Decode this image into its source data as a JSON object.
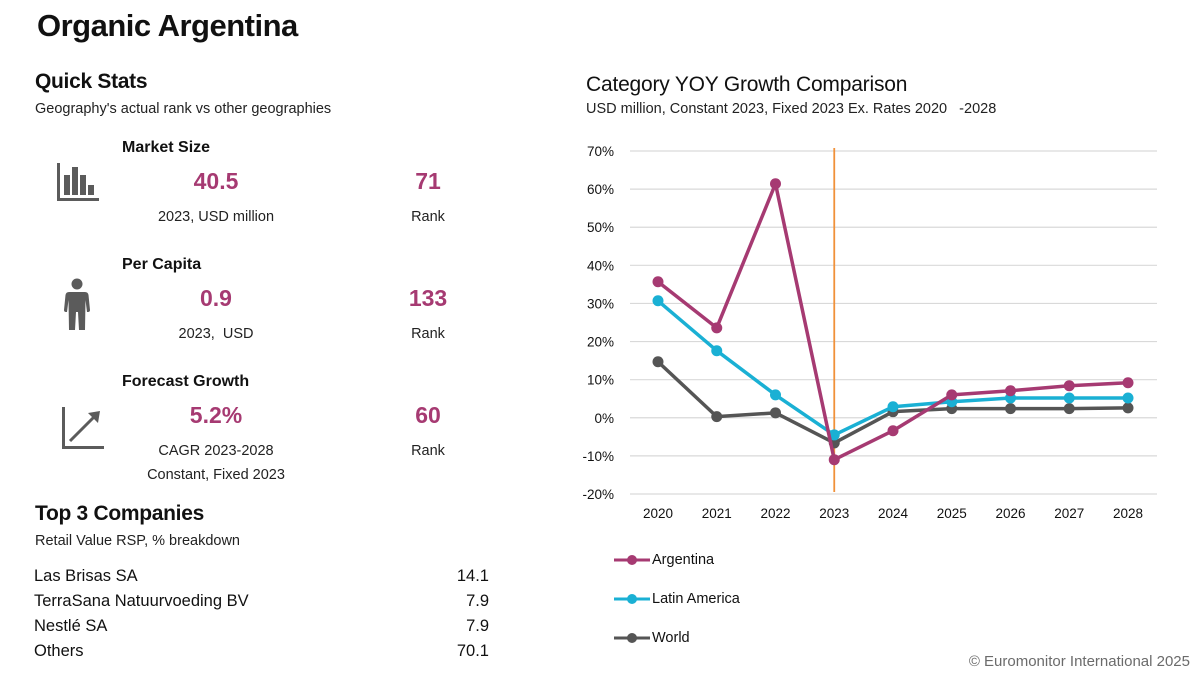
{
  "page": {
    "title": "Organic Argentina",
    "copyright": "© Euromonitor International 2025"
  },
  "quick_stats": {
    "title": "Quick Stats",
    "subtitle": "Geography's actual rank vs other geographies",
    "items": [
      {
        "icon": "bar-chart-icon",
        "label": "Market Size",
        "value": "40.5",
        "caption": "2023, USD million",
        "rank": "71",
        "rank_label": "Rank"
      },
      {
        "icon": "person-icon",
        "label": "Per Capita",
        "value": "0.9",
        "caption": "2023,  USD",
        "rank": "133",
        "rank_label": "Rank"
      },
      {
        "icon": "growth-arrow-icon",
        "label": "Forecast Growth",
        "value": "5.2%",
        "caption": "CAGR 2023-2028",
        "caption2": "Constant, Fixed 2023",
        "rank": "60",
        "rank_label": "Rank"
      }
    ]
  },
  "companies": {
    "title": "Top 3 Companies",
    "subtitle": "Retail Value RSP, % breakdown",
    "rows": [
      {
        "name": "Las Brisas SA",
        "value": "14.1"
      },
      {
        "name": "TerraSana Natuurvoeding BV",
        "value": "7.9"
      },
      {
        "name": "Nestlé SA",
        "value": "7.9"
      },
      {
        "name": "Others",
        "value": "70.1"
      }
    ]
  },
  "colors": {
    "accent": "#a63a72",
    "argentina": "#a63a72",
    "latin_america": "#1ab0d4",
    "world": "#555555",
    "marker_line": "#f0913a",
    "grid": "#d9d9d9"
  },
  "chart_data": {
    "type": "line",
    "title": "Category YOY Growth Comparison",
    "subtitle": "USD million, Constant 2023, Fixed 2023 Ex. Rates 2020   -2028",
    "xlabel": "",
    "ylabel": "",
    "x": [
      "2020",
      "2021",
      "2022",
      "2023",
      "2024",
      "2025",
      "2026",
      "2027",
      "2028"
    ],
    "ylim": [
      -20,
      70
    ],
    "yticks": [
      70,
      60,
      50,
      40,
      30,
      20,
      10,
      0,
      -10,
      -20
    ],
    "ytick_labels": [
      "70%",
      "60%",
      "50%",
      "40%",
      "30%",
      "20%",
      "10%",
      "0%",
      "-10%",
      "-20%"
    ],
    "grid": true,
    "legend_position": "bottom-left",
    "vertical_marker": "2023",
    "series": [
      {
        "name": "Argentina",
        "color": "#a63a72",
        "values": [
          35.7,
          23.6,
          61.4,
          -11.0,
          -3.4,
          6.0,
          7.1,
          8.4,
          9.2
        ]
      },
      {
        "name": "Latin America",
        "color": "#1ab0d4",
        "values": [
          30.7,
          17.6,
          6.0,
          -4.5,
          2.9,
          4.2,
          5.2,
          5.2,
          5.2
        ]
      },
      {
        "name": "World",
        "color": "#555555",
        "values": [
          14.7,
          0.3,
          1.3,
          -6.6,
          1.6,
          2.4,
          2.4,
          2.4,
          2.6
        ]
      }
    ]
  }
}
